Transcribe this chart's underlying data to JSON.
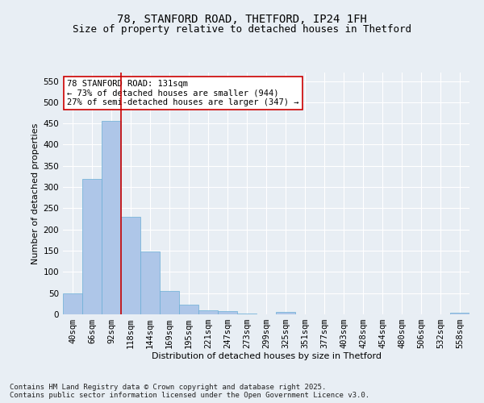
{
  "title_line1": "78, STANFORD ROAD, THETFORD, IP24 1FH",
  "title_line2": "Size of property relative to detached houses in Thetford",
  "xlabel": "Distribution of detached houses by size in Thetford",
  "ylabel": "Number of detached properties",
  "categories": [
    "40sqm",
    "66sqm",
    "92sqm",
    "118sqm",
    "144sqm",
    "169sqm",
    "195sqm",
    "221sqm",
    "247sqm",
    "273sqm",
    "299sqm",
    "325sqm",
    "351sqm",
    "377sqm",
    "403sqm",
    "428sqm",
    "454sqm",
    "480sqm",
    "506sqm",
    "532sqm",
    "558sqm"
  ],
  "values": [
    50,
    320,
    456,
    230,
    148,
    55,
    22,
    10,
    8,
    1,
    0,
    6,
    0,
    0,
    0,
    0,
    0,
    0,
    0,
    0,
    3
  ],
  "bar_color": "#aec6e8",
  "bar_edge_color": "#6aaed6",
  "background_color": "#e8eef4",
  "grid_color": "#ffffff",
  "vline_color": "#cc0000",
  "vline_x_index": 2.5,
  "annotation_box_facecolor": "#ffffff",
  "annotation_box_edgecolor": "#cc0000",
  "annotation_line1": "78 STANFORD ROAD: 131sqm",
  "annotation_line2": "← 73% of detached houses are smaller (944)",
  "annotation_line3": "27% of semi-detached houses are larger (347) →",
  "ylim": [
    0,
    570
  ],
  "yticks": [
    0,
    50,
    100,
    150,
    200,
    250,
    300,
    350,
    400,
    450,
    500,
    550
  ],
  "footer_text": "Contains HM Land Registry data © Crown copyright and database right 2025.\nContains public sector information licensed under the Open Government Licence v3.0.",
  "title_fontsize": 10,
  "subtitle_fontsize": 9,
  "axis_label_fontsize": 8,
  "tick_fontsize": 7.5,
  "annotation_fontsize": 7.5,
  "footer_fontsize": 6.5
}
